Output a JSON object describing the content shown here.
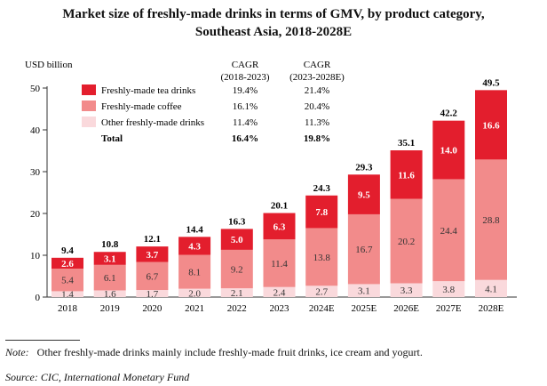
{
  "chart_data": {
    "type": "bar",
    "stacked": true,
    "title": "Market size of freshly-made drinks in terms of GMV, by product category,",
    "subtitle": "Southeast Asia, 2018-2028E",
    "ylabel": "USD billion",
    "ylim": [
      0,
      50
    ],
    "yticks": [
      0,
      10,
      20,
      30,
      40,
      50
    ],
    "grid": false,
    "legend_placement": "top-left",
    "categories": [
      "2018",
      "2019",
      "2020",
      "2021",
      "2022",
      "2023",
      "2024E",
      "2025E",
      "2026E",
      "2027E",
      "2028E"
    ],
    "series": [
      {
        "name": "Other freshly-made drinks",
        "color": "#fad9dc",
        "values": [
          1.4,
          1.6,
          1.7,
          2.0,
          2.1,
          2.4,
          2.7,
          3.1,
          3.3,
          3.8,
          4.1
        ],
        "cagr_2018_2023": "11.4%",
        "cagr_2023_2028E": "11.3%"
      },
      {
        "name": "Freshly-made coffee",
        "color": "#f28b8b",
        "values": [
          5.4,
          6.1,
          6.7,
          8.1,
          9.2,
          11.4,
          13.8,
          16.7,
          20.2,
          24.4,
          28.8
        ],
        "cagr_2018_2023": "16.1%",
        "cagr_2023_2028E": "20.4%"
      },
      {
        "name": "Freshly-made tea drinks",
        "color": "#e31e2d",
        "values": [
          2.6,
          3.1,
          3.7,
          4.3,
          5.0,
          6.3,
          7.8,
          9.5,
          11.6,
          14.0,
          16.6
        ],
        "cagr_2018_2023": "19.4%",
        "cagr_2023_2028E": "21.4%"
      }
    ],
    "totals": [
      9.4,
      10.8,
      12.1,
      14.4,
      16.3,
      20.1,
      24.3,
      29.3,
      35.1,
      42.2,
      49.5
    ],
    "cagr_headers": [
      "CAGR",
      "(2018-2023)",
      "CAGR",
      "(2023-2028E)"
    ],
    "total_row": {
      "label": "Total",
      "cagr_2018_2023": "16.4%",
      "cagr_2023_2028E": "19.8%"
    }
  },
  "footer": {
    "note_label": "Note:",
    "note_text": "Other freshly-made drinks mainly include freshly-made fruit drinks, ice cream and yogurt.",
    "source": "Source: CIC, International Monetary Fund"
  }
}
